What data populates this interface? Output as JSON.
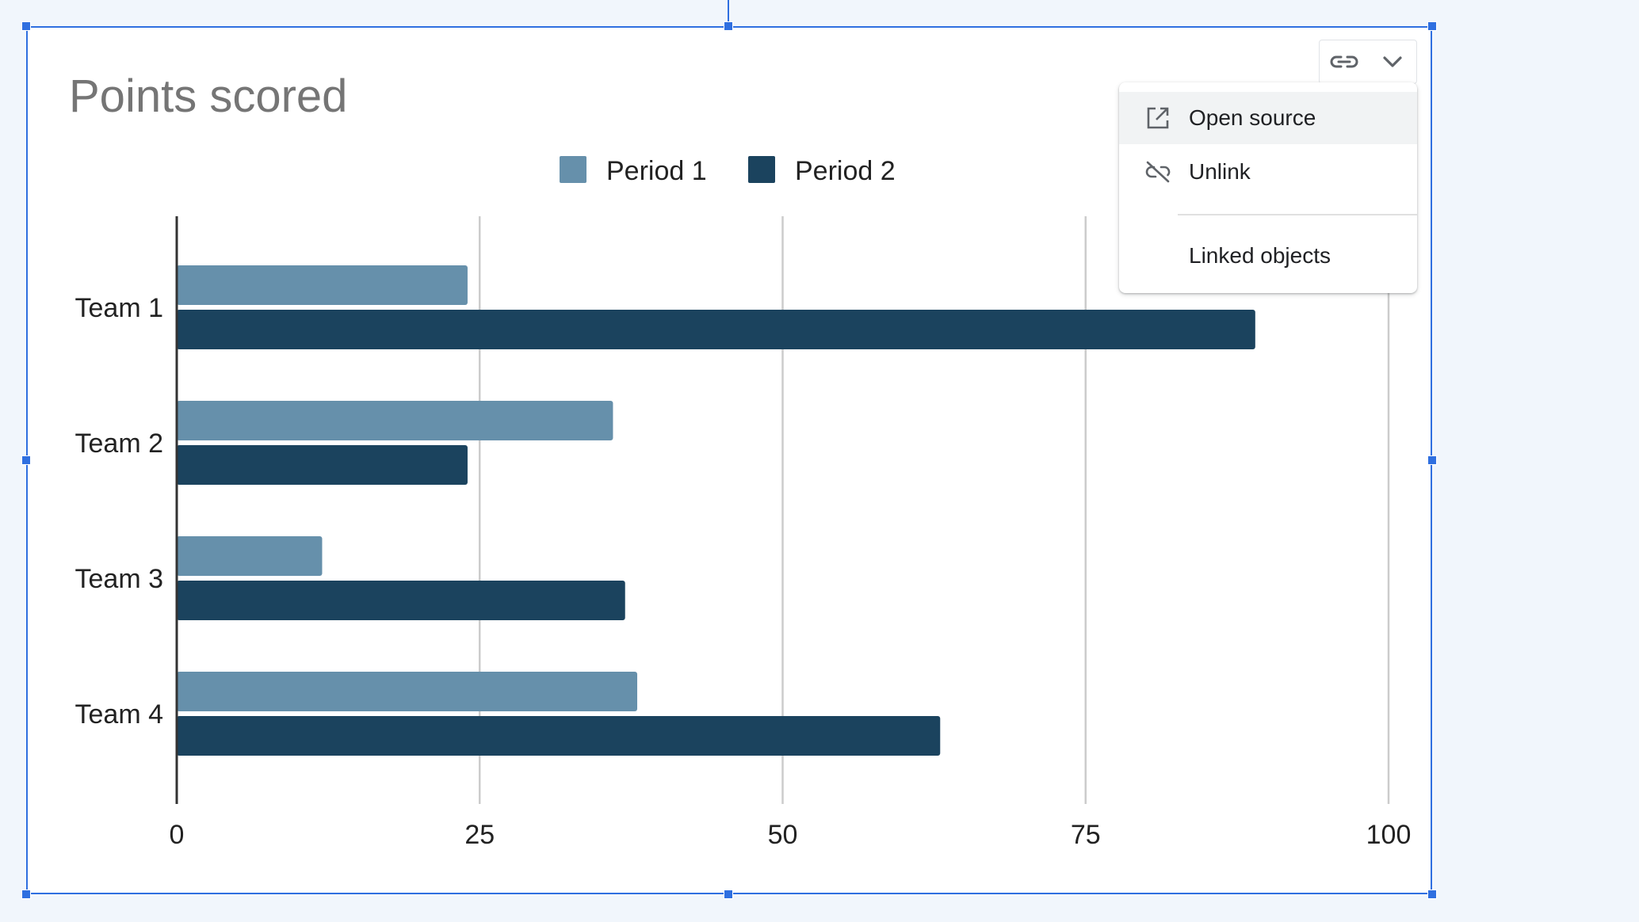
{
  "chart_data": {
    "type": "bar",
    "orientation": "horizontal",
    "title": "Points scored",
    "categories": [
      "Team 1",
      "Team 2",
      "Team 3",
      "Team 4"
    ],
    "series": [
      {
        "name": "Period 1",
        "values": [
          24,
          36,
          12,
          38
        ],
        "color": "#6690ab"
      },
      {
        "name": "Period 2",
        "values": [
          89,
          24,
          37,
          63
        ],
        "color": "#1b435e"
      }
    ],
    "xlim": [
      0,
      100
    ],
    "xticks": [
      "0",
      "25",
      "50",
      "75",
      "100"
    ],
    "grid": true,
    "legend": "top"
  },
  "menu": {
    "items": [
      {
        "label": "Open source",
        "icon": "open-in-new-icon"
      },
      {
        "label": "Unlink",
        "icon": "link-off-icon"
      },
      {
        "label": "Linked objects",
        "icon": ""
      }
    ]
  },
  "toolbar": {
    "link_icon": "link-icon",
    "dropdown_icon": "chevron-down-icon"
  },
  "colors": {
    "selection": "#2f6fe0",
    "title": "#757575"
  }
}
